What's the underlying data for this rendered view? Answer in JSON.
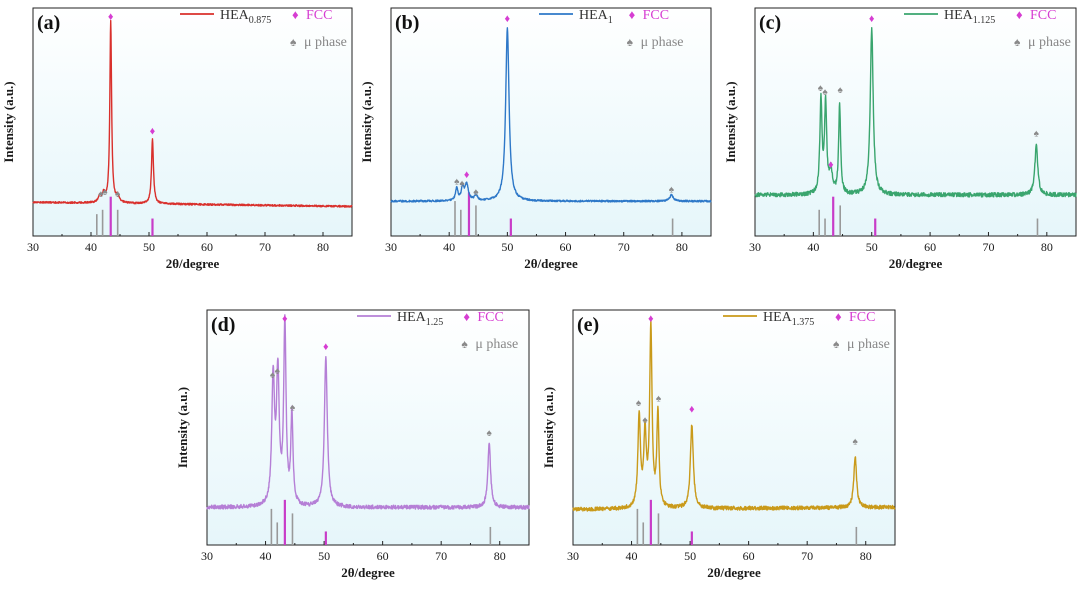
{
  "colors": {
    "fcc_marker": "#d63dd2",
    "mu_marker": "#8a8a8a",
    "ref_fcc": "#c83cc8",
    "ref_mu": "#999999",
    "axis": "#222222"
  },
  "legend_common": {
    "fcc_label": "FCC",
    "mu_label": "μ phase",
    "fcc_symbol": "♦",
    "mu_symbol": "♠"
  },
  "chart_data": [
    {
      "type": "line",
      "panel_label": "(a)",
      "series_name_base": "HEA",
      "series_name_sub": "0.875",
      "color": "#d9302c",
      "xlabel": "2θ/degree",
      "ylabel": "Intensity (a.u.)",
      "xlim": [
        30,
        85
      ],
      "ylim": [
        0,
        100
      ],
      "x_ticks": [
        30,
        40,
        50,
        60,
        70,
        80
      ],
      "baseline": [
        [
          30,
          9.5
        ],
        [
          85,
          7.5
        ]
      ],
      "noise": 0.4,
      "peaks": [
        {
          "x": 41.5,
          "h": 3,
          "w": 0.3
        },
        {
          "x": 42.2,
          "h": 4,
          "w": 0.3
        },
        {
          "x": 43.4,
          "h": 87,
          "w": 0.18
        },
        {
          "x": 44.6,
          "h": 3,
          "w": 0.3
        },
        {
          "x": 50.6,
          "h": 31,
          "w": 0.2
        }
      ],
      "fcc_markers": [
        {
          "x": 43.4,
          "y": 99
        },
        {
          "x": 50.6,
          "y": 44
        }
      ],
      "mu_markers": [
        {
          "x": 41.7,
          "y": 14
        },
        {
          "x": 42.4,
          "y": 15
        },
        {
          "x": 44.6,
          "y": 14
        }
      ],
      "ref_lines": [
        {
          "x": 41.0,
          "kind": "mu",
          "h": 2.5
        },
        {
          "x": 42.0,
          "kind": "mu",
          "h": 3.0
        },
        {
          "x": 43.4,
          "kind": "fcc",
          "h": 4.5
        },
        {
          "x": 44.6,
          "kind": "mu",
          "h": 3.0
        },
        {
          "x": 50.6,
          "kind": "fcc",
          "h": 2.0
        }
      ]
    },
    {
      "type": "line",
      "panel_label": "(b)",
      "series_name_base": "HEA",
      "series_name_sub": "1",
      "color": "#2e78c8",
      "xlabel": "2θ/degree",
      "ylabel": "Intensity (a.u.)",
      "xlim": [
        30,
        85
      ],
      "ylim": [
        0,
        100
      ],
      "x_ticks": [
        30,
        40,
        50,
        60,
        70,
        80
      ],
      "baseline": [
        [
          30,
          10
        ],
        [
          85,
          10
        ]
      ],
      "noise": 0.4,
      "peaks": [
        {
          "x": 41.3,
          "h": 6,
          "w": 0.25
        },
        {
          "x": 42.3,
          "h": 6,
          "w": 0.25
        },
        {
          "x": 43.0,
          "h": 8,
          "w": 0.35
        },
        {
          "x": 44.6,
          "h": 2.5,
          "w": 0.3
        },
        {
          "x": 50.0,
          "h": 83,
          "w": 0.35
        },
        {
          "x": 78.2,
          "h": 3,
          "w": 0.35
        }
      ],
      "fcc_markers": [
        {
          "x": 43.0,
          "y": 23
        },
        {
          "x": 50.0,
          "y": 98
        }
      ],
      "mu_markers": [
        {
          "x": 41.3,
          "y": 20
        },
        {
          "x": 42.2,
          "y": 19
        },
        {
          "x": 44.6,
          "y": 15
        },
        {
          "x": 78.2,
          "y": 16
        }
      ],
      "ref_lines": [
        {
          "x": 41.0,
          "kind": "mu",
          "h": 4.0
        },
        {
          "x": 42.0,
          "kind": "mu",
          "h": 3.0
        },
        {
          "x": 43.4,
          "kind": "fcc",
          "h": 5.0
        },
        {
          "x": 44.6,
          "kind": "mu",
          "h": 3.5
        },
        {
          "x": 50.6,
          "kind": "fcc",
          "h": 2.0
        },
        {
          "x": 78.4,
          "kind": "mu",
          "h": 2.0
        }
      ]
    },
    {
      "type": "line",
      "panel_label": "(c)",
      "series_name_base": "HEA",
      "series_name_sub": "1.125",
      "color": "#3aa56e",
      "xlabel": "2θ/degree",
      "ylabel": "Intensity (a.u.)",
      "xlim": [
        30,
        85
      ],
      "ylim": [
        0,
        100
      ],
      "x_ticks": [
        30,
        40,
        50,
        60,
        70,
        80
      ],
      "baseline": [
        [
          30,
          13
        ],
        [
          85,
          13
        ]
      ],
      "noise": 1.0,
      "peaks": [
        {
          "x": 41.3,
          "h": 45,
          "w": 0.22
        },
        {
          "x": 42.1,
          "h": 43,
          "w": 0.22
        },
        {
          "x": 43.0,
          "h": 11,
          "w": 0.3
        },
        {
          "x": 44.5,
          "h": 43,
          "w": 0.2
        },
        {
          "x": 50.0,
          "h": 80,
          "w": 0.3
        },
        {
          "x": 78.2,
          "h": 24,
          "w": 0.3
        }
      ],
      "fcc_markers": [
        {
          "x": 43.0,
          "y": 28
        },
        {
          "x": 50.0,
          "y": 98
        }
      ],
      "mu_markers": [
        {
          "x": 41.2,
          "y": 65
        },
        {
          "x": 42.0,
          "y": 63
        },
        {
          "x": 44.6,
          "y": 64
        },
        {
          "x": 78.2,
          "y": 43
        }
      ],
      "ref_lines": [
        {
          "x": 41.0,
          "kind": "mu",
          "h": 3.0
        },
        {
          "x": 42.0,
          "kind": "mu",
          "h": 2.0
        },
        {
          "x": 43.4,
          "kind": "fcc",
          "h": 4.5
        },
        {
          "x": 44.6,
          "kind": "mu",
          "h": 3.5
        },
        {
          "x": 50.6,
          "kind": "fcc",
          "h": 2.0
        },
        {
          "x": 78.4,
          "kind": "mu",
          "h": 2.0
        }
      ]
    },
    {
      "type": "line",
      "panel_label": "(d)",
      "series_name_base": "HEA",
      "series_name_sub": "1.25",
      "color": "#b57fd6",
      "xlabel": "2θ/degree",
      "ylabel": "Intensity (a.u.)",
      "xlim": [
        30,
        85
      ],
      "ylim": [
        0,
        100
      ],
      "x_ticks": [
        30,
        40,
        50,
        60,
        70,
        80
      ],
      "baseline": [
        [
          30,
          11
        ],
        [
          85,
          11
        ]
      ],
      "noise": 0.9,
      "peaks": [
        {
          "x": 41.3,
          "h": 58,
          "w": 0.28
        },
        {
          "x": 42.1,
          "h": 60,
          "w": 0.28
        },
        {
          "x": 43.3,
          "h": 84,
          "w": 0.24
        },
        {
          "x": 44.5,
          "h": 42,
          "w": 0.22
        },
        {
          "x": 50.3,
          "h": 70,
          "w": 0.3
        },
        {
          "x": 78.2,
          "h": 30,
          "w": 0.28
        }
      ],
      "fcc_markers": [
        {
          "x": 43.3,
          "y": 99
        },
        {
          "x": 50.3,
          "y": 86
        }
      ],
      "mu_markers": [
        {
          "x": 41.2,
          "y": 73
        },
        {
          "x": 42.0,
          "y": 75
        },
        {
          "x": 44.6,
          "y": 58
        },
        {
          "x": 78.2,
          "y": 46
        }
      ],
      "ref_lines": [
        {
          "x": 41.0,
          "kind": "mu",
          "h": 4.0
        },
        {
          "x": 42.0,
          "kind": "mu",
          "h": 2.5
        },
        {
          "x": 43.3,
          "kind": "fcc",
          "h": 5.0
        },
        {
          "x": 44.6,
          "kind": "mu",
          "h": 3.5
        },
        {
          "x": 50.3,
          "kind": "fcc",
          "h": 1.5
        },
        {
          "x": 78.4,
          "kind": "mu",
          "h": 2.0
        }
      ]
    },
    {
      "type": "line",
      "panel_label": "(e)",
      "series_name_base": "HEA",
      "series_name_sub": "1.375",
      "color": "#c99a1a",
      "xlabel": "2θ/degree",
      "ylabel": "Intensity (a.u.)",
      "xlim": [
        30,
        85
      ],
      "ylim": [
        0,
        100
      ],
      "x_ticks": [
        30,
        40,
        50,
        60,
        70,
        80
      ],
      "baseline": [
        [
          30,
          10
        ],
        [
          85,
          11
        ]
      ],
      "noise": 0.9,
      "peaks": [
        {
          "x": 41.3,
          "h": 42,
          "w": 0.26
        },
        {
          "x": 42.3,
          "h": 33,
          "w": 0.26
        },
        {
          "x": 43.3,
          "h": 83,
          "w": 0.24
        },
        {
          "x": 44.5,
          "h": 44,
          "w": 0.22
        },
        {
          "x": 50.3,
          "h": 39,
          "w": 0.3
        },
        {
          "x": 78.2,
          "h": 24,
          "w": 0.28
        }
      ],
      "fcc_markers": [
        {
          "x": 43.3,
          "y": 99
        },
        {
          "x": 50.3,
          "y": 57
        }
      ],
      "mu_markers": [
        {
          "x": 41.2,
          "y": 60
        },
        {
          "x": 42.3,
          "y": 52
        },
        {
          "x": 44.6,
          "y": 62
        },
        {
          "x": 78.2,
          "y": 42
        }
      ],
      "ref_lines": [
        {
          "x": 41.0,
          "kind": "mu",
          "h": 4.0
        },
        {
          "x": 42.0,
          "kind": "mu",
          "h": 2.5
        },
        {
          "x": 43.3,
          "kind": "fcc",
          "h": 5.0
        },
        {
          "x": 44.6,
          "kind": "mu",
          "h": 3.5
        },
        {
          "x": 50.3,
          "kind": "fcc",
          "h": 1.5
        },
        {
          "x": 78.4,
          "kind": "mu",
          "h": 2.0
        }
      ]
    }
  ]
}
